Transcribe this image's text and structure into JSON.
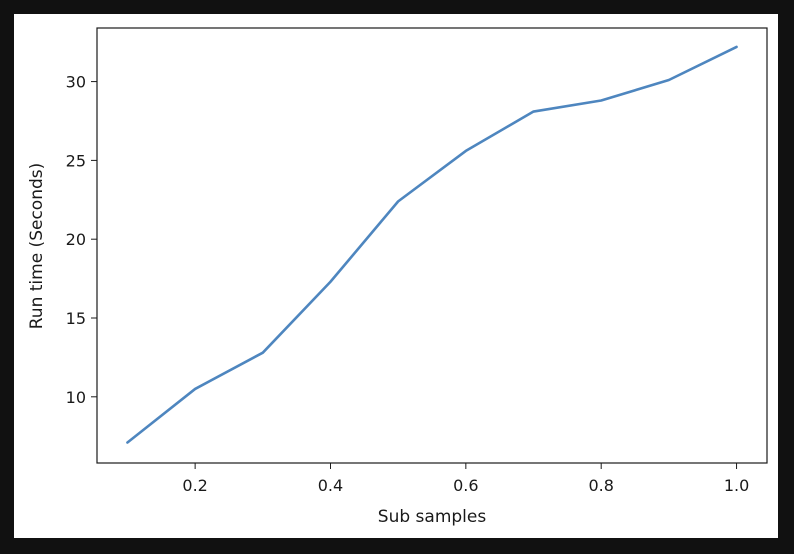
{
  "chart_data": {
    "type": "line",
    "title": "",
    "xlabel": "Sub samples",
    "ylabel": "Run time (Seconds)",
    "xlim": [
      0.055,
      1.045
    ],
    "ylim": [
      5.8,
      33.4
    ],
    "xticks": [
      0.2,
      0.4,
      0.6,
      0.8,
      1.0
    ],
    "xtick_labels": [
      "0.2",
      "0.4",
      "0.6",
      "0.8",
      "1.0"
    ],
    "yticks": [
      10,
      15,
      20,
      25,
      30
    ],
    "ytick_labels": [
      "10",
      "15",
      "20",
      "25",
      "30"
    ],
    "grid": false,
    "series": [
      {
        "color": "#4e86bf",
        "x": [
          0.1,
          0.2,
          0.3,
          0.4,
          0.5,
          0.6,
          0.7,
          0.8,
          0.9,
          1.0
        ],
        "y": [
          7.1,
          10.5,
          12.8,
          17.3,
          22.4,
          25.6,
          28.1,
          28.8,
          30.1,
          32.2
        ]
      }
    ]
  }
}
